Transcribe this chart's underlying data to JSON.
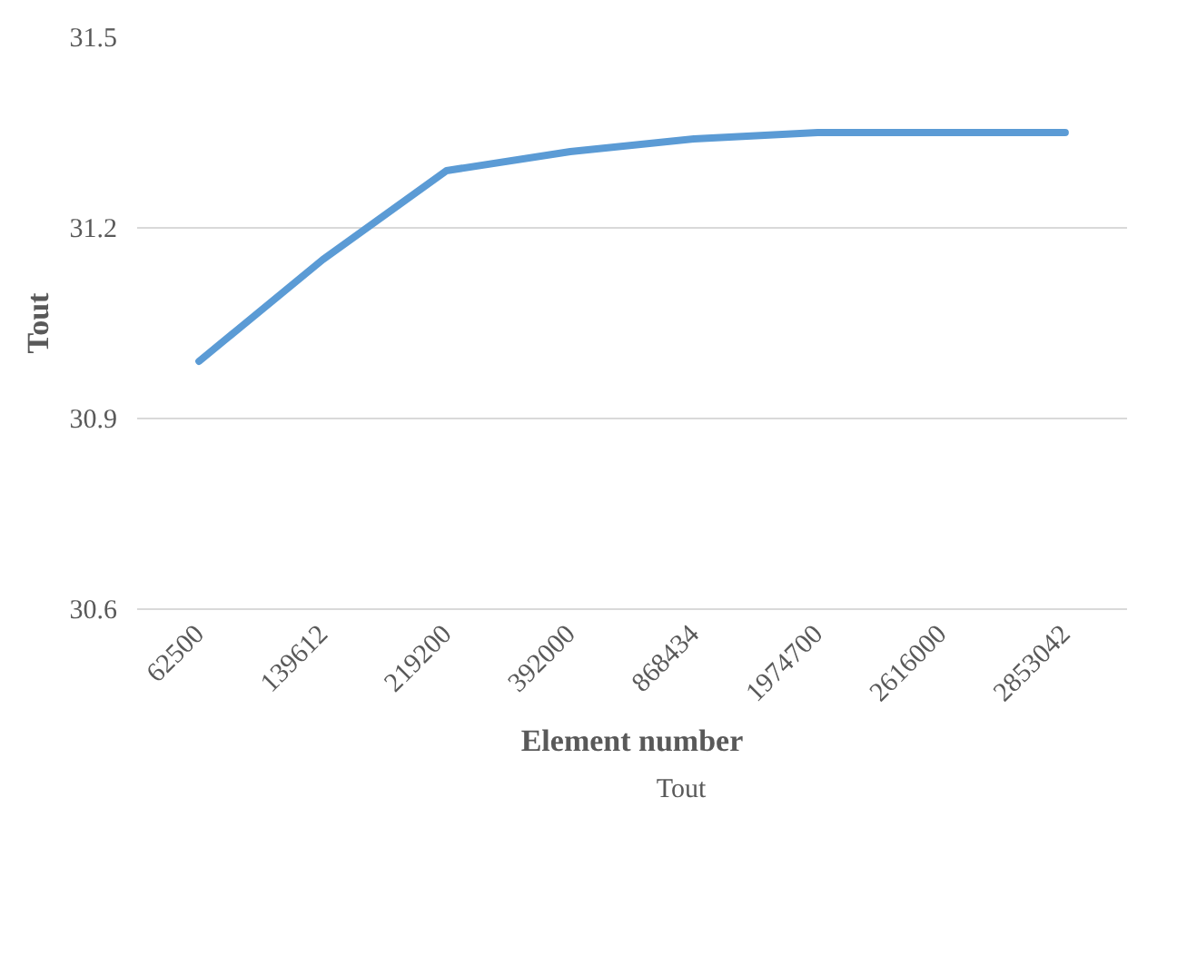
{
  "chart_data": {
    "type": "line",
    "xlabel": "Element number",
    "ylabel": "Tout",
    "categories": [
      "62500",
      "139612",
      "219200",
      "392000",
      "868434",
      "1974700",
      "2616000",
      "2853042"
    ],
    "series": [
      {
        "name": "Tout",
        "color": "#5b9bd5",
        "values": [
          30.99,
          31.15,
          31.29,
          31.32,
          31.34,
          31.35,
          31.35,
          31.35
        ]
      }
    ],
    "ylim": [
      30.6,
      31.5
    ],
    "yticks": [
      30.6,
      30.9,
      31.2,
      31.5
    ],
    "grid": "y",
    "legend": "bottom",
    "marker": "none",
    "line_style": "solid"
  }
}
